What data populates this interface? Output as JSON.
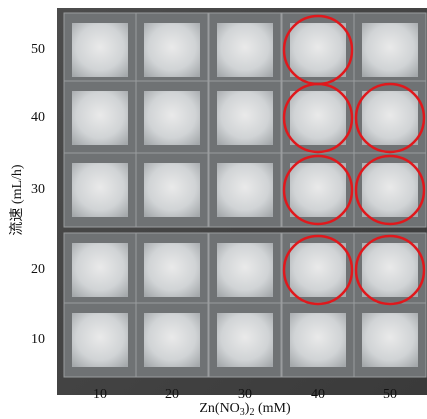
{
  "y_axis": {
    "label": "流速 (mL/h)",
    "ticks": [
      50,
      40,
      30,
      20,
      10
    ]
  },
  "x_axis": {
    "label_parts": [
      "Zn(NO",
      "3",
      ")",
      "2",
      " (mM)"
    ],
    "ticks": [
      10,
      20,
      30,
      40,
      50
    ]
  },
  "highlighted": [
    {
      "x": 40,
      "y": 50
    },
    {
      "x": 40,
      "y": 40
    },
    {
      "x": 50,
      "y": 40
    },
    {
      "x": 40,
      "y": 30
    },
    {
      "x": 50,
      "y": 30
    },
    {
      "x": 40,
      "y": 20
    },
    {
      "x": 50,
      "y": 20
    }
  ],
  "highlight_color": "#e0181c"
}
